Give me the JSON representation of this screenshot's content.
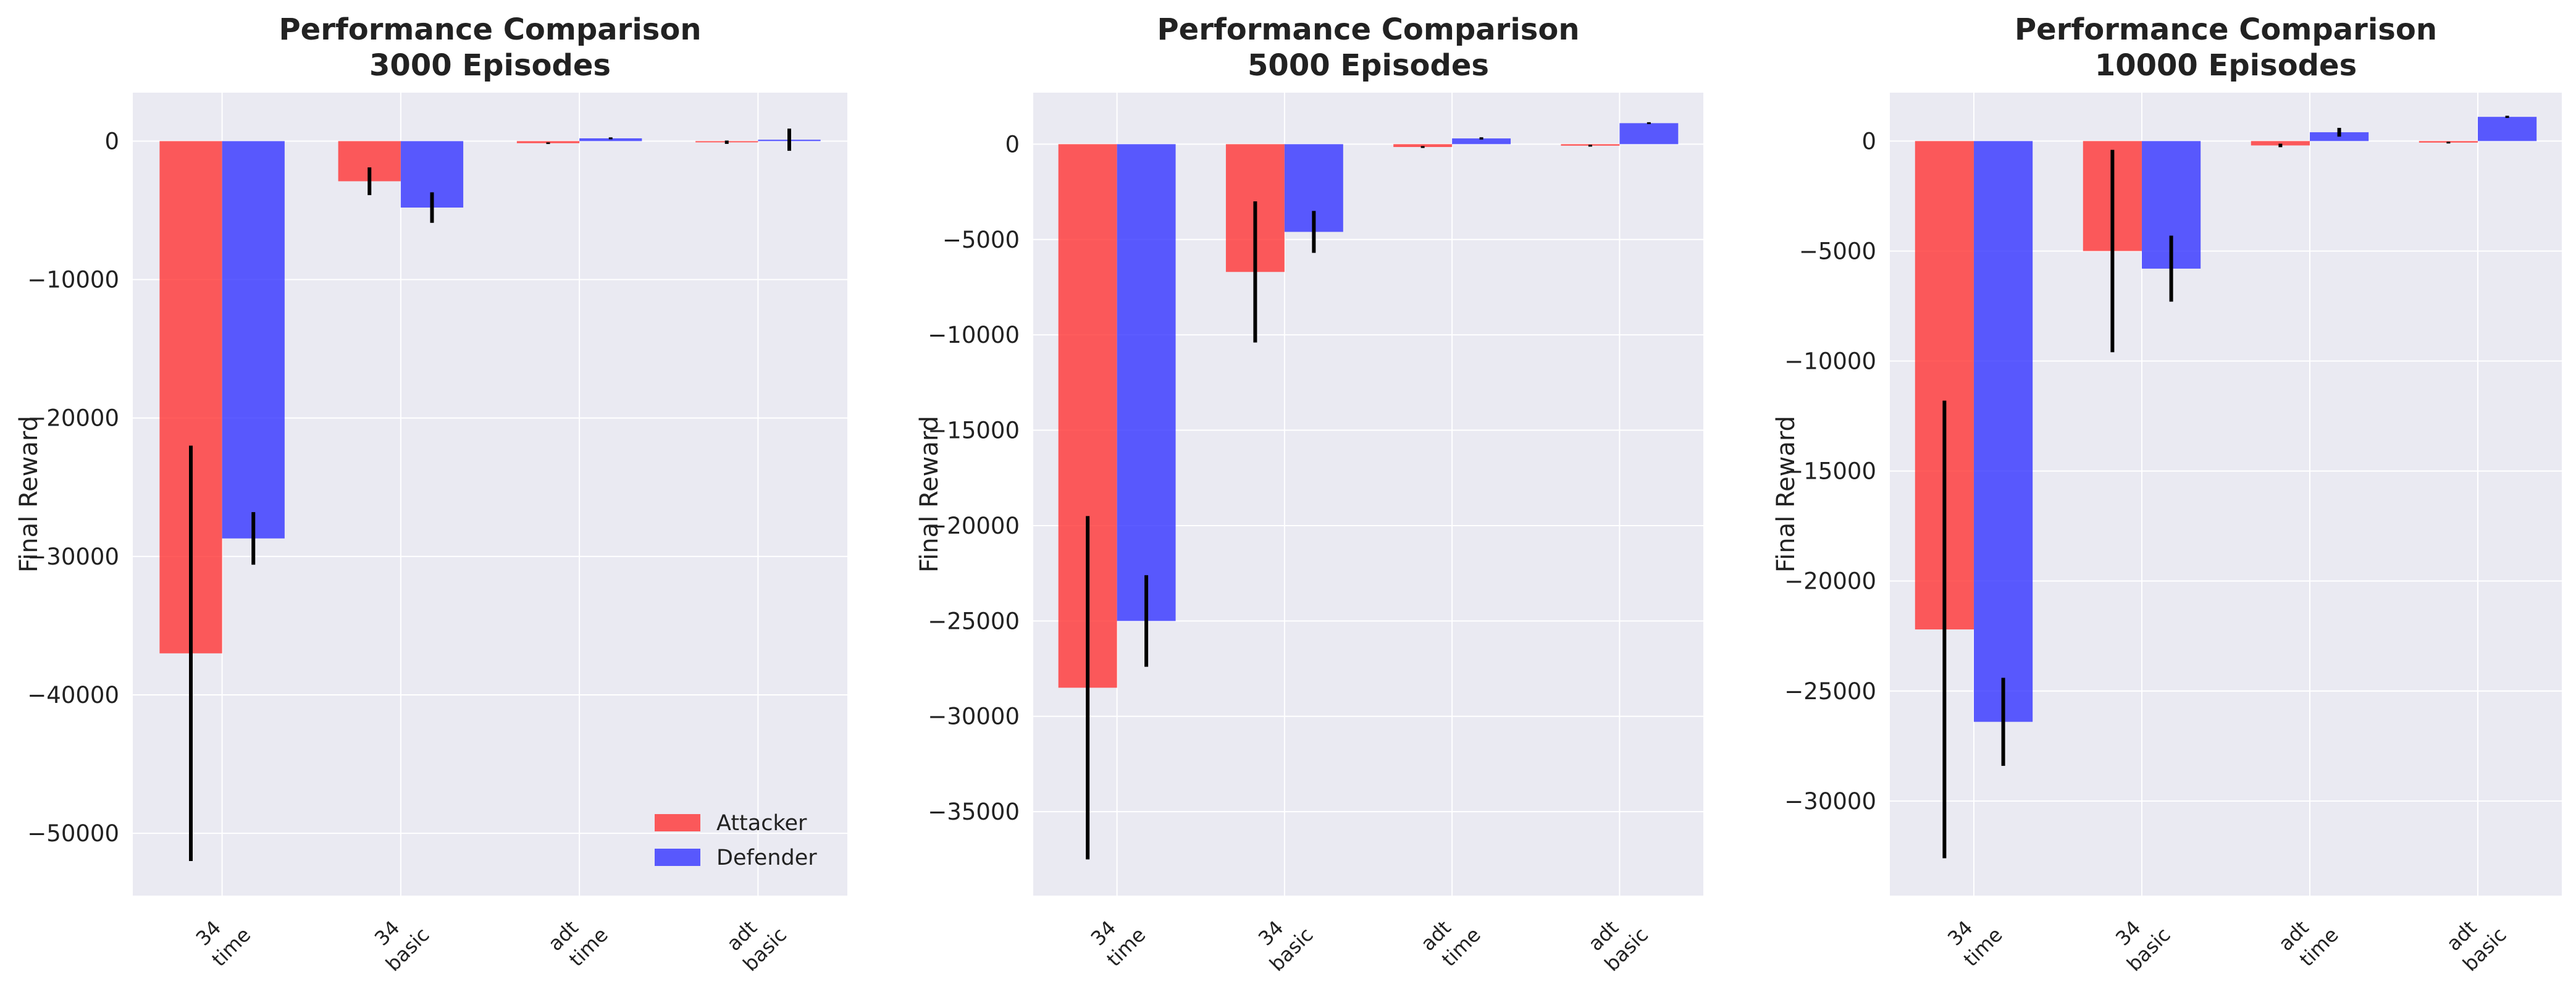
{
  "chart_data": [
    {
      "type": "bar",
      "title": "Performance Comparison\n3000 Episodes",
      "xlabel": "",
      "ylabel": "Final Reward",
      "categories": [
        "34\ntime",
        "34\nbasic",
        "adt\ntime",
        "adt\nbasic"
      ],
      "ylim": [
        -54500,
        3500
      ],
      "yticks": [
        0,
        -10000,
        -20000,
        -30000,
        -40000,
        -50000
      ],
      "grid": true,
      "legend": "bottom-right",
      "series": [
        {
          "name": "Attacker",
          "color": "#ff3333",
          "values": [
            -37000,
            -2900,
            -150,
            -80
          ],
          "errors": [
            15000,
            1000,
            60,
            120
          ]
        },
        {
          "name": "Defender",
          "color": "#3333ff",
          "values": [
            -28700,
            -4800,
            200,
            100
          ],
          "errors": [
            1900,
            1100,
            70,
            800
          ]
        }
      ]
    },
    {
      "type": "bar",
      "title": "Performance Comparison\n5000 Episodes",
      "xlabel": "",
      "ylabel": "Final Reward",
      "categories": [
        "34\ntime",
        "34\nbasic",
        "adt\ntime",
        "adt\nbasic"
      ],
      "ylim": [
        -39400,
        2700
      ],
      "yticks": [
        0,
        -5000,
        -10000,
        -15000,
        -20000,
        -25000,
        -30000,
        -35000
      ],
      "grid": true,
      "series": [
        {
          "name": "Attacker",
          "color": "#ff3333",
          "values": [
            -28500,
            -6700,
            -150,
            -80
          ],
          "errors": [
            9000,
            3700,
            50,
            50
          ]
        },
        {
          "name": "Defender",
          "color": "#3333ff",
          "values": [
            -25000,
            -4600,
            300,
            1100
          ],
          "errors": [
            2400,
            1100,
            60,
            50
          ]
        }
      ]
    },
    {
      "type": "bar",
      "title": "Performance Comparison\n10000 Episodes",
      "xlabel": "",
      "ylabel": "Final Reward",
      "categories": [
        "34\ntime",
        "34\nbasic",
        "adt\ntime",
        "adt\nbasic"
      ],
      "ylim": [
        -34300,
        2200
      ],
      "yticks": [
        0,
        -5000,
        -10000,
        -15000,
        -20000,
        -25000,
        -30000
      ],
      "grid": true,
      "series": [
        {
          "name": "Attacker",
          "color": "#ff3333",
          "values": [
            -22200,
            -5000,
            -200,
            -70
          ],
          "errors": [
            10400,
            4600,
            80,
            40
          ]
        },
        {
          "name": "Defender",
          "color": "#3333ff",
          "values": [
            -26400,
            -5800,
            400,
            1100
          ],
          "errors": [
            2000,
            1500,
            200,
            50
          ]
        }
      ]
    }
  ]
}
